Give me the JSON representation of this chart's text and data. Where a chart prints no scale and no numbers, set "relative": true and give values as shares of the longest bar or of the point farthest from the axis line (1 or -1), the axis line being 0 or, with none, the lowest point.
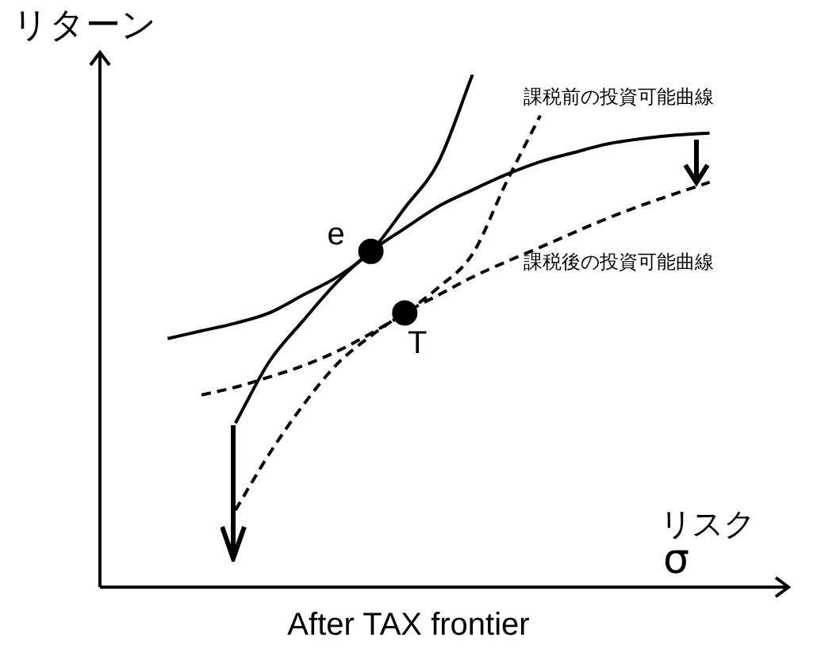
{
  "chart_data": {
    "type": "line",
    "title": "After TAX frontier",
    "ylabel": "リターン",
    "xlabel": "リスク",
    "annotations": [
      "σ"
    ],
    "relative": true,
    "categories": [
      null,
      null,
      null,
      null,
      null,
      null,
      null,
      null,
      null,
      null,
      null,
      null,
      null,
      null,
      null,
      null,
      null,
      null,
      null,
      null,
      null
    ],
    "series": [
      {
        "name": "課税前の投資可能曲線",
        "color": "#000000",
        "line_style": "solid",
        "marker": "none",
        "values": [
          null,
          null,
          null,
          null,
          0.32,
          0.44,
          0.52,
          0.595,
          0.655,
          0.7,
          0.743,
          0.775,
          0.805,
          0.83,
          0.848,
          0.865,
          0.875,
          0.882,
          0.886,
          null,
          null
        ]
      },
      {
        "color": "#000000",
        "line_style": "solid",
        "marker": "none",
        "values": [
          null,
          null,
          0.485,
          0.5,
          0.515,
          0.535,
          0.57,
          0.605,
          0.655,
          0.74,
          0.83,
          1,
          null,
          null,
          null,
          null,
          null,
          null,
          null,
          null,
          null
        ]
      },
      {
        "name": "課税後の投資可能曲線",
        "color": "#000000",
        "line_style": "dashed",
        "marker": "none",
        "values": [
          null,
          null,
          null,
          null,
          0.15,
          0.26,
          0.355,
          0.435,
          0.49,
          0.535,
          0.57,
          0.605,
          0.635,
          0.663,
          0.692,
          0.72,
          0.745,
          0.768,
          0.79,
          null,
          null
        ]
      },
      {
        "color": "#000000",
        "line_style": "dashed",
        "marker": "none",
        "values": [
          null,
          null,
          null,
          0.375,
          0.39,
          0.41,
          0.432,
          0.46,
          0.495,
          0.535,
          0.585,
          0.65,
          0.79,
          0.92,
          null,
          null,
          null,
          null,
          null,
          null,
          null
        ]
      },
      {
        "name": "e",
        "color": "#000000",
        "marker": "circle",
        "values": [
          null,
          null,
          null,
          null,
          null,
          null,
          null,
          null,
          0.655,
          null,
          null,
          null,
          null,
          null,
          null,
          null,
          null,
          null,
          null,
          null,
          null
        ]
      },
      {
        "name": "T",
        "color": "#000000",
        "marker": "circle",
        "values": [
          null,
          null,
          null,
          null,
          null,
          null,
          null,
          null,
          null,
          0.535,
          null,
          null,
          null,
          null,
          null,
          null,
          null,
          null,
          null,
          null,
          null
        ]
      }
    ]
  }
}
